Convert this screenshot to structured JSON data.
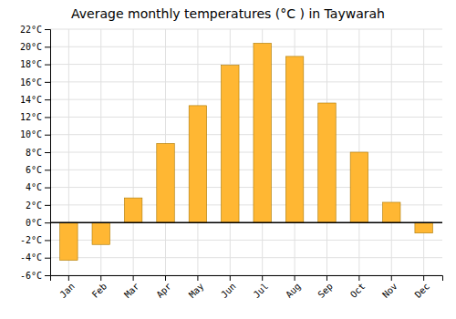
{
  "chart_data": {
    "type": "bar",
    "title": "Average monthly temperatures (°C ) in Taywarah",
    "categories": [
      "Jan",
      "Feb",
      "Mar",
      "Apr",
      "May",
      "Jun",
      "Jul",
      "Aug",
      "Sep",
      "Oct",
      "Nov",
      "Dec"
    ],
    "values": [
      -4.3,
      -2.5,
      2.8,
      9.0,
      13.3,
      17.9,
      20.4,
      18.9,
      13.6,
      8.0,
      2.3,
      -1.2
    ],
    "color": "#FFB733",
    "ylim": [
      -6,
      22
    ],
    "yticks": [
      {
        "value": -6,
        "label": "-6°C"
      },
      {
        "value": -4,
        "label": "-4°C"
      },
      {
        "value": -2,
        "label": "-2°C"
      },
      {
        "value": 0,
        "label": "0°C"
      },
      {
        "value": 2,
        "label": "2°C"
      },
      {
        "value": 4,
        "label": "4°C"
      },
      {
        "value": 6,
        "label": "6°C"
      },
      {
        "value": 8,
        "label": "8°C"
      },
      {
        "value": 10,
        "label": "10°C"
      },
      {
        "value": 12,
        "label": "12°C"
      },
      {
        "value": 14,
        "label": "14°C"
      },
      {
        "value": 16,
        "label": "16°C"
      },
      {
        "value": 18,
        "label": "18°C"
      },
      {
        "value": 20,
        "label": "20°C"
      },
      {
        "value": 22,
        "label": "22°C"
      }
    ],
    "grid": true
  }
}
